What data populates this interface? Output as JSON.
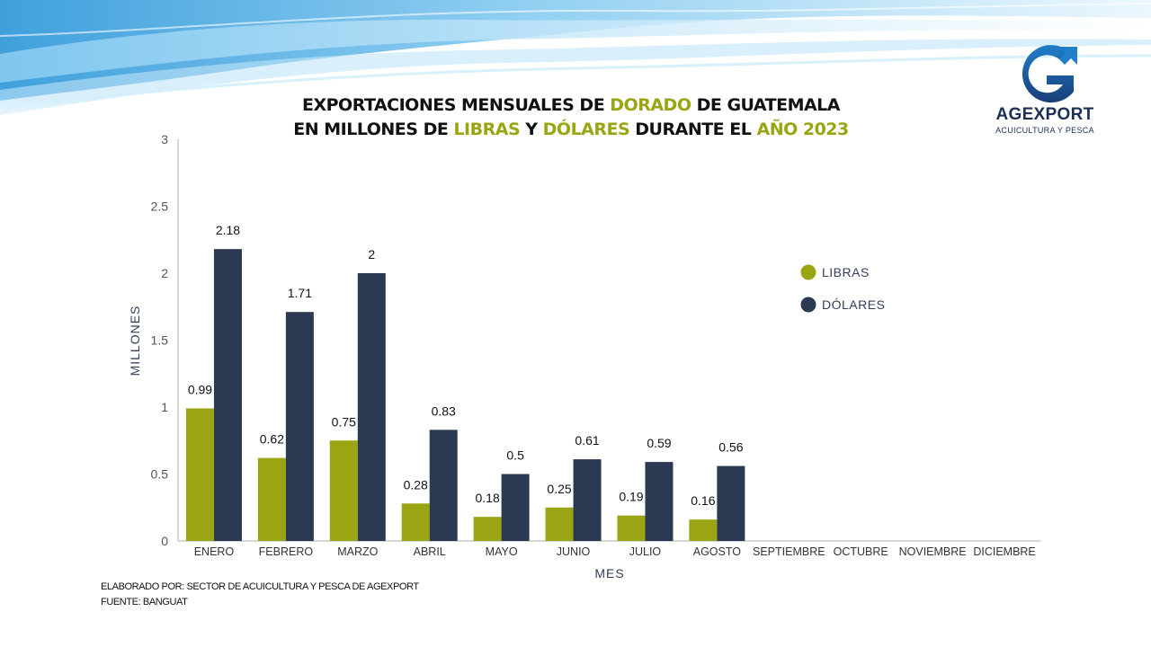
{
  "header": {
    "title_line1": [
      "EXPORTACIONES MENSUALES DE ",
      "DORADO",
      " DE GUATEMALA"
    ],
    "title_line2": [
      "EN MILLONES DE ",
      "LIBRAS",
      " Y ",
      "DÓLARES",
      " DURANTE EL ",
      "AÑO 2023"
    ]
  },
  "logo": {
    "icon": "agexport-g-logo",
    "name": "AGEXPORT",
    "subtitle": "ACUICULTURA Y PESCA"
  },
  "colors": {
    "libras": "#9aa514",
    "dolares": "#2c3953",
    "highlight": "#9aa514",
    "brand": "#1d2f55"
  },
  "chart_data": {
    "type": "bar",
    "xlabel": "MES",
    "ylabel": "MILLONES",
    "ylim": [
      0,
      3
    ],
    "yticks": [
      "0",
      "0.5",
      "1",
      "1.5",
      "2",
      "2.5",
      "3"
    ],
    "categories": [
      "ENERO",
      "FEBRERO",
      "MARZO",
      "ABRIL",
      "MAYO",
      "JUNIO",
      "JULIO",
      "AGOSTO",
      "SEPTIEMBRE",
      "OCTUBRE",
      "NOVIEMBRE",
      "DICIEMBRE"
    ],
    "series": [
      {
        "name": "LIBRAS",
        "values": [
          0.99,
          0.62,
          0.75,
          0.28,
          0.18,
          0.25,
          0.19,
          0.16,
          null,
          null,
          null,
          null
        ],
        "labels": [
          "0.99",
          "0.62",
          "0.75",
          "0.28",
          "0.18",
          "0.25",
          "0.19",
          "0.16",
          "",
          "",
          "",
          ""
        ]
      },
      {
        "name": "DÓLARES",
        "values": [
          2.18,
          1.71,
          2.0,
          0.83,
          0.5,
          0.61,
          0.59,
          0.56,
          null,
          null,
          null,
          null
        ],
        "labels": [
          "2.18",
          "1.71",
          "2",
          "0.83",
          "0.5",
          "0.61",
          "0.59",
          "0.56",
          "",
          "",
          "",
          ""
        ]
      }
    ],
    "legend_position": "right"
  },
  "footer": {
    "elaborado": "ELABORADO POR: SECTOR DE ACUICULTURA Y PESCA DE AGEXPORT",
    "fuente": "FUENTE:  BANGUAT"
  }
}
